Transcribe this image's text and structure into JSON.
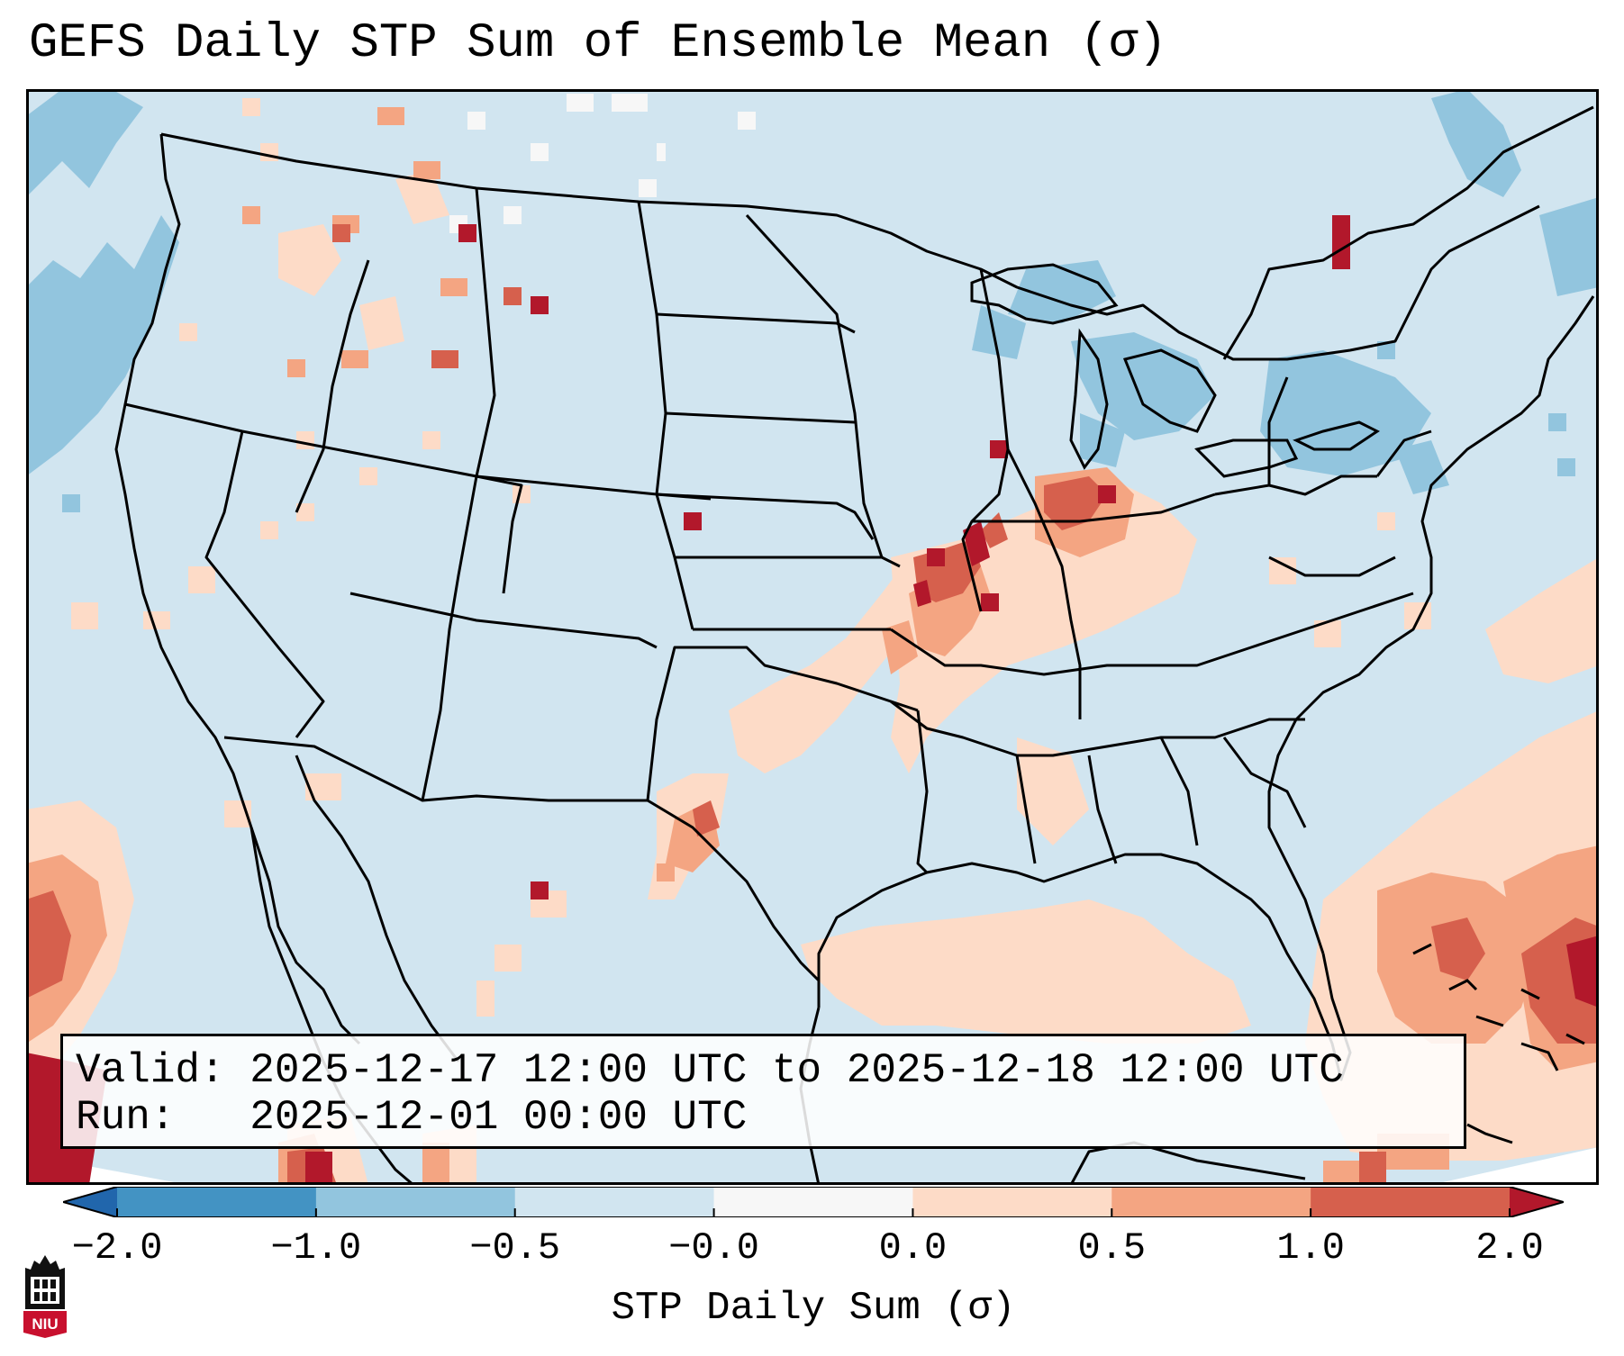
{
  "title": "GEFS Daily STP Sum of Ensemble Mean (σ)",
  "info": {
    "valid_label": "Valid:",
    "valid_value": "2025-12-17 12:00 UTC to 2025-12-18 12:00 UTC",
    "run_label": "Run:",
    "run_value": "2025-12-01 00:00 UTC"
  },
  "colorbar": {
    "label": "STP Daily Sum (σ)",
    "ticks": [
      "−2.0",
      "−1.0",
      "−0.5",
      "−0.0",
      "0.0",
      "0.5",
      "1.0",
      "2.0"
    ],
    "bins": [
      {
        "range": "-2.0 to -1.0",
        "color": "#4393c3"
      },
      {
        "range": "-1.0 to -0.5",
        "color": "#92c5de"
      },
      {
        "range": "-0.5 to -0.0",
        "color": "#d1e5f0"
      },
      {
        "range": "-0.0 to 0.0",
        "color": "#f7f7f7"
      },
      {
        "range": "0.0 to 0.5",
        "color": "#fddbc7"
      },
      {
        "range": "0.5 to 1.0",
        "color": "#f4a582"
      },
      {
        "range": "1.0 to 2.0",
        "color": "#d6604d"
      }
    ],
    "under_color": "#2166ac",
    "over_color": "#b2182b"
  },
  "map": {
    "background_color": "#d1e5f0",
    "projection": "Lambert Conformal (CONUS)",
    "highlight_regions": [
      {
        "region": "Missouri / Iowa / Illinois",
        "level": "1.0 to 2.0+"
      },
      {
        "region": "Indiana / Ohio",
        "level": "0.5 to 2.0+"
      },
      {
        "region": "Oklahoma / Texas line",
        "level": "0.0 to 1.0"
      },
      {
        "region": "Gulf of Mexico",
        "level": "0.0 to 0.5"
      },
      {
        "region": "Atlantic east of Florida / Bahamas",
        "level": "0.5 to 2.0+"
      },
      {
        "region": "Great Lakes / Northeast",
        "level": "-1.0 to -0.5"
      },
      {
        "region": "Pacific off Oregon / Washington",
        "level": "-1.0 to -0.5"
      }
    ]
  },
  "logo": {
    "text": "NIU",
    "icon": "niu-logo-icon"
  }
}
